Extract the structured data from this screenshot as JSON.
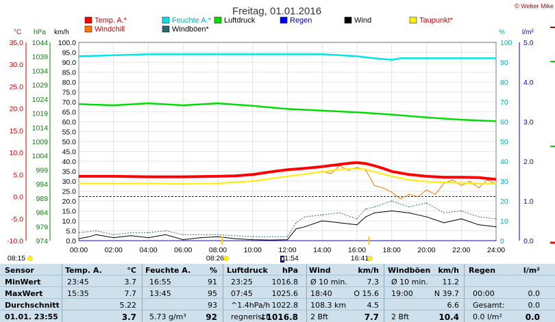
{
  "header": {
    "title": "Freitag, 01.01.2016",
    "copyright": "© Weber Mike"
  },
  "legend": [
    {
      "label": "Temp. A.*",
      "color": "#ff0000"
    },
    {
      "label": "Feuchte A.*",
      "color": "#00e5e5"
    },
    {
      "label": "Luftdruck",
      "color": "#00dd00"
    },
    {
      "label": "Regen",
      "color": "#0000ff"
    },
    {
      "label": "Wind",
      "color": "#000000"
    },
    {
      "label": "Taupunkt*",
      "color": "#ffee00"
    },
    {
      "label": "Windchill",
      "color": "#ff7700"
    },
    {
      "label": "Windböen*",
      "color": "#2b6b6b"
    }
  ],
  "axis_units": {
    "temp": "°C",
    "hpa": "hPa",
    "kmh": "km/h",
    "pct": "%",
    "rain": "l/m²"
  },
  "axes": {
    "temp_ticks": [
      "35.0",
      "30.0",
      "25.0",
      "20.0",
      "15.0",
      "10.0",
      "5.0",
      "0.0",
      "-5.0",
      "-10.0"
    ],
    "hpa_ticks": [
      "1044",
      "1039",
      "1034",
      "1029",
      "1024",
      "1019",
      "1014",
      "1009",
      "1004",
      "999",
      "994",
      "989",
      "984",
      "979",
      "974"
    ],
    "kmh_ticks": [
      "100.0",
      "95.0",
      "90.0",
      "85.0",
      "80.0",
      "75.0",
      "70.0",
      "65.0",
      "60.0",
      "55.0",
      "50.0",
      "45.0",
      "40.0",
      "35.0",
      "30.0",
      "25.0",
      "20.0",
      "15.0",
      "10.0",
      "5.0",
      "0.0"
    ],
    "pct_ticks": [
      "100",
      "90",
      "80",
      "70",
      "60",
      "50",
      "40",
      "30",
      "20",
      "10",
      "0"
    ],
    "rain_ticks": [
      "5.0",
      "4.0",
      "3.0",
      "2.0",
      "1.0",
      "0.0"
    ],
    "time_ticks": [
      "00:00",
      "02:00",
      "04:00",
      "06:00",
      "08:00",
      "10:00",
      "12:00",
      "14:00",
      "16:00",
      "18:00",
      "20:00",
      "22:00",
      "24:00"
    ]
  },
  "sun_moon": [
    {
      "time": "08:15",
      "kind": "sunrise"
    },
    {
      "time": "08:26",
      "kind": "moon"
    },
    {
      "time": "11:54",
      "kind": "moon-marker"
    },
    {
      "time": "16:41",
      "kind": "sunset"
    }
  ],
  "chart_data": {
    "type": "line",
    "title": "Freitag, 01.01.2016",
    "x_range": [
      0,
      24
    ],
    "series": [
      {
        "name": "Temp. A.*",
        "axis": "°C",
        "color": "#ff0000",
        "x": [
          0,
          2,
          4,
          6,
          8,
          9,
          10,
          11,
          12,
          13,
          14,
          15,
          15.6,
          16,
          16.5,
          17,
          17.5,
          18,
          19,
          20,
          21,
          22,
          23,
          24
        ],
        "values": [
          4.6,
          4.6,
          4.5,
          4.5,
          4.6,
          4.7,
          5.0,
          5.6,
          6.1,
          6.4,
          6.8,
          7.3,
          7.6,
          7.7,
          7.5,
          7.0,
          6.4,
          5.7,
          5.0,
          4.6,
          4.4,
          4.4,
          4.3,
          3.9
        ]
      },
      {
        "name": "Taupunkt*",
        "axis": "°C",
        "color": "#ffee00",
        "x": [
          0,
          2,
          4,
          6,
          8,
          10,
          12,
          14,
          15,
          16,
          16.5,
          17,
          18,
          19,
          20,
          21,
          22,
          23,
          24
        ],
        "values": [
          3.0,
          3.0,
          3.0,
          2.9,
          3.0,
          3.5,
          4.6,
          5.6,
          6.2,
          6.3,
          6.2,
          5.6,
          4.6,
          3.8,
          3.4,
          3.2,
          3.1,
          3.0,
          2.9
        ]
      },
      {
        "name": "Windchill",
        "axis": "°C",
        "color": "#ff7700",
        "x": [
          0,
          13,
          14,
          14.5,
          15,
          15.5,
          16,
          16.5,
          16.8,
          17,
          17.5,
          18,
          18.5,
          19,
          19.5,
          20,
          20.5,
          21,
          21.5,
          22,
          22.5,
          23,
          23.5,
          24
        ],
        "values": [
          null,
          null,
          5.8,
          5.2,
          7.0,
          6.0,
          6.6,
          6.0,
          4.0,
          2.5,
          2.0,
          1.0,
          -0.5,
          0.5,
          0.0,
          1.5,
          0.5,
          3.0,
          3.8,
          2.5,
          3.5,
          2.0,
          3.8,
          2.8
        ]
      },
      {
        "name": "Feuchte A.*",
        "axis": "%",
        "color": "#00e5e5",
        "x": [
          0,
          4,
          8,
          12,
          14,
          15,
          16,
          16.5,
          17,
          18,
          18.5,
          20,
          22,
          24
        ],
        "values": [
          93,
          94,
          94,
          94,
          94,
          93.5,
          93,
          92.5,
          92,
          91.2,
          92,
          92,
          92,
          92
        ]
      },
      {
        "name": "Luftdruck",
        "axis": "hPa",
        "color": "#00dd00",
        "x": [
          0,
          2,
          4,
          6,
          8,
          10,
          12,
          14,
          16,
          18,
          20,
          22,
          24
        ],
        "values": [
          1022.2,
          1021.8,
          1022.5,
          1021.8,
          1022.5,
          1021.6,
          1020.5,
          1019.9,
          1019.3,
          1018.5,
          1017.5,
          1016.7,
          1016.2
        ]
      },
      {
        "name": "Wind",
        "axis": "km/h",
        "color": "#000000",
        "x": [
          0,
          0.5,
          1,
          2,
          3,
          4,
          5,
          6,
          7,
          8,
          9,
          10,
          11,
          12,
          12.5,
          13,
          14,
          15,
          16,
          16.5,
          17,
          18,
          19,
          20,
          21,
          22,
          23,
          24
        ],
        "values": [
          1,
          1.8,
          3,
          1.5,
          2.5,
          1.5,
          3,
          0.5,
          1.5,
          2,
          1,
          0.5,
          0.3,
          0.5,
          6,
          7,
          10,
          9,
          8,
          12,
          14,
          15,
          14,
          12,
          9,
          11,
          8,
          7
        ]
      },
      {
        "name": "Windböen*",
        "axis": "km/h",
        "color": "#2b6b6b",
        "x": [
          0,
          1,
          2,
          3,
          4,
          5,
          6,
          8,
          10,
          12,
          12.5,
          13,
          14,
          15,
          16,
          16.5,
          17,
          18,
          19,
          20,
          21,
          22,
          23,
          24
        ],
        "values": [
          4,
          5,
          3,
          4,
          4,
          5,
          3,
          3,
          2,
          2,
          9,
          12,
          13,
          14,
          11,
          16,
          17,
          20,
          17,
          19,
          14,
          15,
          12,
          11
        ]
      },
      {
        "name": "Regen",
        "axis": "l/m²",
        "color": "#0000ff",
        "x": [
          0,
          24
        ],
        "values": [
          0,
          0
        ]
      }
    ],
    "legend_position": "top",
    "grid": true
  },
  "stats": {
    "header": [
      "Sensor",
      "Temp. A.",
      "°C",
      "Feuchte A.",
      "%",
      "Luftdruck",
      "hPa",
      "Wind",
      "km/h",
      "Windböen",
      "km/h",
      "Regen",
      "l/m²"
    ],
    "rows": [
      {
        "label": "MinWert",
        "c": [
          "23:45",
          "3.7",
          "16:55",
          "91",
          "23:25",
          "1016.8",
          "Ø 10 min.",
          "7.3",
          "Ø 10 min.",
          "11.2",
          "",
          ""
        ]
      },
      {
        "label": "MaxWert",
        "c": [
          "15:35",
          "7.7",
          "13:45",
          "95",
          "07:45",
          "1025.6",
          "18:40",
          "O 15.6",
          "19:00",
          "N 39.7",
          "00:00",
          "0.0"
        ]
      },
      {
        "label": "Durchschnitt",
        "c": [
          "",
          "5.22",
          "",
          "93",
          "^1.4hPa/h",
          "1022.8",
          "108.3 km",
          "4.5",
          "",
          "6.6",
          "Gesamt:",
          "0.0"
        ]
      },
      {
        "label": "01.01. 23:55",
        "c": [
          "",
          "3.7",
          "5.73 g/m³",
          "92",
          "regnerisch",
          "↓1016.8",
          "2 Bft",
          "7.7",
          "2 Bft",
          "10.4",
          "0.0 l/m²",
          "0.0"
        ]
      }
    ]
  }
}
